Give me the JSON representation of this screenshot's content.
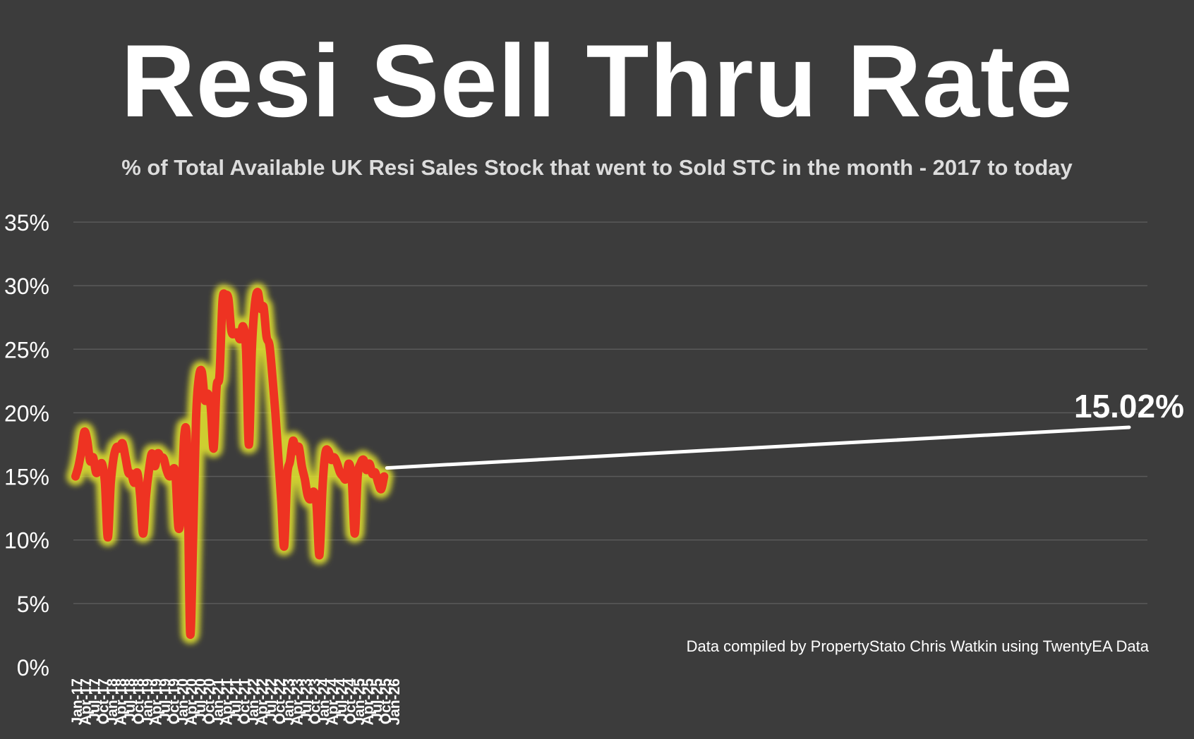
{
  "chart_data": {
    "type": "line",
    "title": "Resi Sell Thru Rate",
    "subtitle": "% of Total Available UK Resi Sales Stock that went to Sold STC in the month - 2017 to today",
    "source": "Data compiled by PropertyStato Chris Watkin using TwentyEA Data",
    "annotation": "15.02%",
    "ylim": [
      0,
      35
    ],
    "y_ticks": [
      "0%",
      "5%",
      "10%",
      "15%",
      "20%",
      "25%",
      "30%",
      "35%"
    ],
    "x_tick_labels": [
      "Jan-17",
      "Apr-17",
      "Jul-17",
      "Oct-17",
      "Jan-18",
      "Apr-18",
      "Jul-18",
      "Oct-18",
      "Jan-19",
      "Apr-19",
      "Jul-19",
      "Oct-19",
      "Jan-20",
      "Apr-20",
      "Jul-20",
      "Oct-20",
      "Jan-21",
      "Apr-21",
      "Jul-21",
      "Oct-21",
      "Jan-22",
      "Apr-22",
      "Jul-22",
      "Oct-22",
      "Jan-23",
      "Apr-23",
      "Jul-23",
      "Oct-23",
      "Jan-24",
      "Apr-24",
      "Jul-24",
      "Oct-24",
      "Jan-25",
      "Apr-25",
      "Jul-25",
      "Oct-25",
      "Jan-26"
    ],
    "grid": true,
    "colors": {
      "line": "#ee3322",
      "glow": "#e8e830",
      "background": "#3c3c3c",
      "grid": "#5a5a5a",
      "text": "#ffffff"
    },
    "series": [
      {
        "x": [
          "Jan-17",
          "Feb-17",
          "Mar-17",
          "Apr-17",
          "May-17",
          "Jun-17",
          "Jul-17",
          "Aug-17",
          "Sep-17",
          "Oct-17",
          "Nov-17",
          "Dec-17",
          "Jan-18",
          "Feb-18",
          "Mar-18",
          "Apr-18",
          "May-18",
          "Jun-18",
          "Jul-18",
          "Aug-18",
          "Sep-18",
          "Oct-18",
          "Nov-18",
          "Dec-18",
          "Jan-19",
          "Feb-19",
          "Mar-19",
          "Apr-19",
          "May-19",
          "Jun-19",
          "Jul-19",
          "Aug-19",
          "Sep-19",
          "Oct-19",
          "Nov-19",
          "Dec-19",
          "Jan-20",
          "Feb-20",
          "Mar-20",
          "Apr-20",
          "May-20",
          "Jun-20",
          "Jul-20",
          "Aug-20",
          "Sep-20",
          "Oct-20",
          "Nov-20",
          "Dec-20",
          "Jan-21",
          "Feb-21",
          "Mar-21",
          "Apr-21",
          "May-21",
          "Jun-21",
          "Jul-21",
          "Aug-21",
          "Sep-21",
          "Oct-21",
          "Nov-21",
          "Dec-21",
          "Jan-22",
          "Feb-22",
          "Mar-22",
          "Apr-22",
          "May-22",
          "Jun-22",
          "Jul-22",
          "Aug-22",
          "Sep-22",
          "Oct-22",
          "Nov-22",
          "Dec-22",
          "Jan-23",
          "Feb-23",
          "Mar-23",
          "Apr-23",
          "May-23",
          "Jun-23",
          "Jul-23",
          "Aug-23",
          "Sep-23",
          "Oct-23",
          "Nov-23",
          "Dec-23",
          "Jan-24",
          "Feb-24",
          "Mar-24",
          "Apr-24",
          "May-24",
          "Jun-24",
          "Jul-24",
          "Aug-24",
          "Sep-24",
          "Oct-24",
          "Nov-24",
          "Dec-24",
          "Jan-25",
          "Feb-25",
          "Mar-25",
          "Apr-25",
          "May-25",
          "Jun-25",
          "Jul-25",
          "Aug-25",
          "Sep-25",
          "Oct-25"
        ],
        "values": [
          15.0,
          15.8,
          17.0,
          18.5,
          17.8,
          16.2,
          16.5,
          15.3,
          15.6,
          16.0,
          14.5,
          10.2,
          14.5,
          16.5,
          17.3,
          17.2,
          17.6,
          16.5,
          15.3,
          15.2,
          14.5,
          15.3,
          13.5,
          10.5,
          13.5,
          15.5,
          16.8,
          15.8,
          16.8,
          16.5,
          16.4,
          15.5,
          15.0,
          15.5,
          15.2,
          11.0,
          12.5,
          18.2,
          17.0,
          2.7,
          10.0,
          19.5,
          22.8,
          23.2,
          21.0,
          21.5,
          20.5,
          17.2,
          22.0,
          23.0,
          28.8,
          29.2,
          29.0,
          26.5,
          26.2,
          26.3,
          25.8,
          26.8,
          25.0,
          17.5,
          25.0,
          28.5,
          29.5,
          28.2,
          28.3,
          26.0,
          25.3,
          22.8,
          20.0,
          16.5,
          13.0,
          9.5,
          15.0,
          16.2,
          17.8,
          17.0,
          17.3,
          15.8,
          14.8,
          13.5,
          13.2,
          13.8,
          12.8,
          8.8,
          14.0,
          16.8,
          17.0,
          16.3,
          16.5,
          16.0,
          15.3,
          15.0,
          14.8,
          16.0,
          14.8,
          10.5,
          15.0,
          16.0,
          16.3,
          15.5,
          16.0,
          15.2,
          15.3,
          14.5,
          14.0,
          15.0
        ]
      }
    ]
  }
}
